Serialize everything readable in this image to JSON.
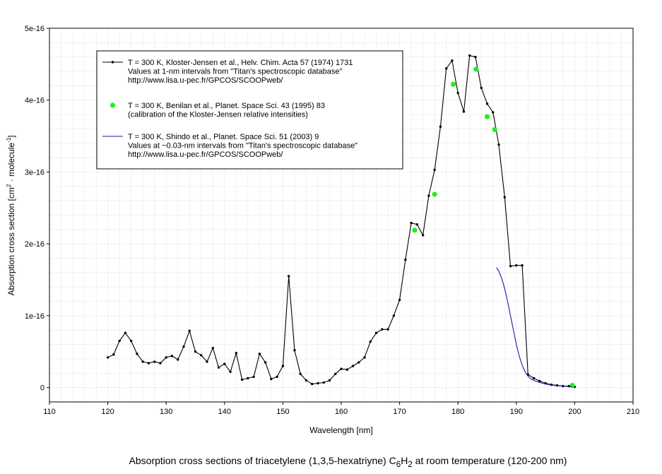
{
  "chart_data": {
    "type": "line",
    "title": "Absorption cross sections of triacetylene (1,3,5-hexatriyne) C6H2 at room temperature (120-200 nm)",
    "title_parts": {
      "before": "Absorption cross sections of triacetylene (1,3,5-hexatriyne) C",
      "sub1": "6",
      "mid": "H",
      "sub2": "2",
      "after": " at room temperature (120-200 nm)"
    },
    "xlabel": "Wavelength [nm]",
    "ylabel_parts": {
      "before": "Absorption cross section [cm",
      "sup1": "2",
      "mid": " · molecule",
      "sup2": "-1",
      "after": "]"
    },
    "xlim": [
      110,
      210
    ],
    "ylim": [
      -2e-17,
      5e-16
    ],
    "grid": true,
    "legend_position": "top-left",
    "x_ticks": [
      {
        "value": 110,
        "label": "110"
      },
      {
        "value": 120,
        "label": "120"
      },
      {
        "value": 130,
        "label": "130"
      },
      {
        "value": 140,
        "label": "140"
      },
      {
        "value": 150,
        "label": "150"
      },
      {
        "value": 160,
        "label": "160"
      },
      {
        "value": 170,
        "label": "170"
      },
      {
        "value": 180,
        "label": "180"
      },
      {
        "value": 190,
        "label": "190"
      },
      {
        "value": 200,
        "label": "200"
      },
      {
        "value": 210,
        "label": "210"
      }
    ],
    "y_ticks": [
      {
        "value": 0,
        "label": "0"
      },
      {
        "value": 1e-16,
        "label": "1e-16"
      },
      {
        "value": 2e-16,
        "label": "2e-16"
      },
      {
        "value": 3e-16,
        "label": "3e-16"
      },
      {
        "value": 4e-16,
        "label": "4e-16"
      },
      {
        "value": 5e-16,
        "label": "5e-16"
      }
    ],
    "series": [
      {
        "name": "T = 300 K, Kloster-Jensen et al., Helv. Chim. Acta 57 (1974) 1731",
        "legend_lines": [
          "T = 300 K, Kloster-Jensen et al., Helv. Chim. Acta 57 (1974) 1731",
          "Values at 1-nm intervals from \"Titan's spectroscopic database\"",
          "http://www.lisa.u-pec.fr/GPCOS/SCOOPweb/"
        ],
        "style": "line-with-dots",
        "color": "#000000",
        "x": [
          120,
          121,
          122,
          123,
          124,
          125,
          126,
          127,
          128,
          129,
          130,
          131,
          132,
          133,
          134,
          135,
          136,
          137,
          138,
          139,
          140,
          141,
          142,
          143,
          144,
          145,
          146,
          147,
          148,
          149,
          150,
          151,
          152,
          153,
          154,
          155,
          156,
          157,
          158,
          159,
          160,
          161,
          162,
          163,
          164,
          165,
          166,
          167,
          168,
          169,
          170,
          171,
          172,
          173,
          174,
          175,
          176,
          177,
          178,
          179,
          180,
          181,
          182,
          183,
          184,
          185,
          186,
          187,
          188,
          189,
          190,
          191,
          192,
          193,
          194,
          195,
          196,
          197,
          198,
          199,
          200
        ],
        "y": [
          4.2e-17,
          4.6e-17,
          6.5e-17,
          7.6e-17,
          6.5e-17,
          4.7e-17,
          3.6e-17,
          3.4e-17,
          3.6e-17,
          3.4e-17,
          4.2e-17,
          4.4e-17,
          3.9e-17,
          5.7e-17,
          7.9e-17,
          5e-17,
          4.5e-17,
          3.6e-17,
          5.5e-17,
          2.8e-17,
          3.3e-17,
          2.2e-17,
          4.8e-17,
          1.1e-17,
          1.3e-17,
          1.5e-17,
          4.7e-17,
          3.5e-17,
          1.2e-17,
          1.5e-17,
          3e-17,
          1.55e-16,
          5.2e-17,
          1.9e-17,
          1e-17,
          5e-18,
          6e-18,
          7e-18,
          1e-17,
          1.9e-17,
          2.6e-17,
          2.5e-17,
          3e-17,
          3.5e-17,
          4.2e-17,
          6.4e-17,
          7.6e-17,
          8.1e-17,
          8.1e-17,
          1e-16,
          1.22e-16,
          1.78e-16,
          2.29e-16,
          2.27e-16,
          2.12e-16,
          2.67e-16,
          3.03e-16,
          3.63e-16,
          4.44e-16,
          4.55e-16,
          4.1e-16,
          3.84e-16,
          4.62e-16,
          4.6e-16,
          4.17e-16,
          3.95e-16,
          3.83e-16,
          3.38e-16,
          2.65e-16,
          1.69e-16,
          1.7e-16,
          1.7e-16,
          1.8e-17,
          1.3e-17,
          9e-18,
          6e-18,
          4e-18,
          3e-18,
          2e-18,
          2e-18,
          1e-18
        ]
      },
      {
        "name": "T = 300 K, Benilan et al., Planet. Space Sci. 43 (1995) 83",
        "legend_lines": [
          "T = 300 K, Benilan et al., Planet. Space Sci. 43 (1995) 83",
          "(calibration of the Kloster-Jensen relative intensities)"
        ],
        "style": "markers",
        "color": "#22ee22",
        "x": [
          172.6,
          176.0,
          179.2,
          183.1,
          185.0,
          186.3,
          199.6
        ],
        "y": [
          2.19e-16,
          2.69e-16,
          4.22e-16,
          4.43e-16,
          3.77e-16,
          3.59e-16,
          3e-18
        ]
      },
      {
        "name": "T = 300 K, Shindo et al., Planet. Space Sci. 51 (2003) 9",
        "legend_lines": [
          "T = 300 K, Shindo et al., Planet. Space Sci. 51 (2003) 9",
          "Values at ~0.03-nm intervals from \"Titan's spectroscopic database\"",
          "http://www.lisa.u-pec.fr/GPCOS/SCOOPweb/"
        ],
        "style": "line",
        "color": "#1a1aaa",
        "x": [
          186.6,
          187.0,
          187.5,
          188.0,
          188.5,
          189.0,
          189.5,
          190.0,
          190.5,
          191.0,
          191.5,
          192.0,
          192.5,
          193.0,
          194.0,
          195.0,
          196.0,
          197.0,
          198.0,
          199.0,
          199.6
        ],
        "y": [
          1.67e-16,
          1.62e-16,
          1.52e-16,
          1.38e-16,
          1.2e-16,
          1e-16,
          8e-17,
          6e-17,
          4.4e-17,
          3.1e-17,
          2.2e-17,
          1.6e-17,
          1.2e-17,
          1e-17,
          7e-18,
          5e-18,
          3.5e-18,
          2.5e-18,
          2e-18,
          1.5e-18,
          1e-18
        ]
      }
    ]
  }
}
